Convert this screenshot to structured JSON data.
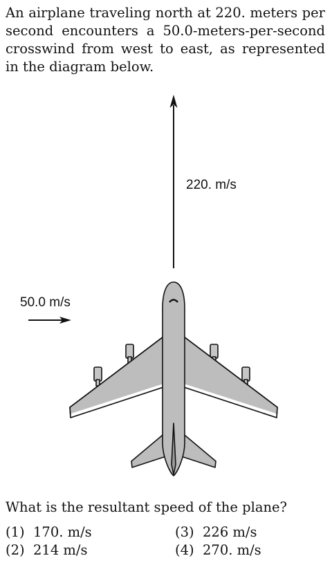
{
  "question_text": "An airplane traveling north at 220. meters per second encounters a 50.0-meters-per-second crosswind from west to east, as represented in the diagram below.",
  "diagram": {
    "north_velocity_label": "220. m/s",
    "crosswind_label": "50.0 m/s"
  },
  "prompt": "What is the resultant speed of the plane?",
  "choices": [
    {
      "number": "(1)",
      "text": "170. m/s"
    },
    {
      "number": "(2)",
      "text": "214 m/s"
    },
    {
      "number": "(3)",
      "text": "226 m/s"
    },
    {
      "number": "(4)",
      "text": "270. m/s"
    }
  ]
}
